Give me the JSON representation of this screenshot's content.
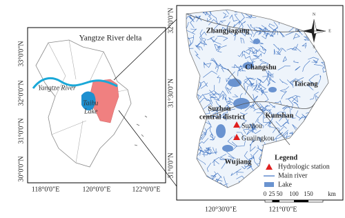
{
  "left_panel": {
    "title": "Yangtze River delta",
    "river_label": "Yangtze River",
    "lake_label": [
      "Taihu",
      "Lake"
    ],
    "y_ticks": [
      "33°0'0\"N",
      "32°0'0\"N",
      "31°0'0\"N",
      "30°0'0\"N"
    ],
    "x_ticks": [
      "118°0'0\"E",
      "120°0'0\"E",
      "122°0'0\"E"
    ]
  },
  "right_panel": {
    "y_ticks": [
      "32°0'0\"N",
      "31°30'0\"N",
      "31°0'0\"N"
    ],
    "x_ticks": [
      "120°30'0\"E",
      "121°0'0\"E"
    ],
    "places": [
      "Zhangjiagang",
      "Changshu",
      "Taicang",
      "Kunshan",
      "Wujiang"
    ],
    "district": [
      "Suzhou",
      "central district"
    ],
    "stations": [
      "Suzhou",
      "Guajingkou"
    ],
    "compass": [
      "N",
      "E",
      "S",
      "W"
    ],
    "legend": {
      "title": "Legend",
      "items": [
        "Hydrologic station",
        "Main river",
        "Lake"
      ]
    },
    "scale": {
      "ticks": [
        "0",
        "25",
        "50",
        "100",
        "150"
      ],
      "unit": "km"
    }
  }
}
